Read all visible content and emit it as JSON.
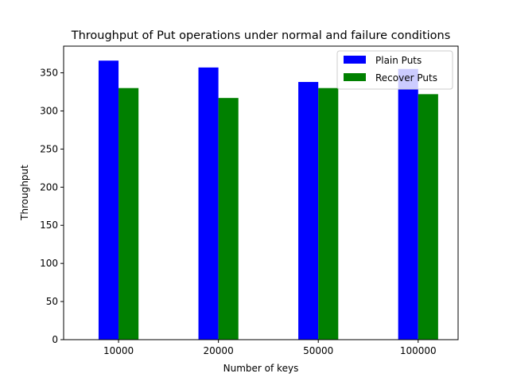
{
  "chart_data": {
    "type": "bar",
    "title": "Throughput of Put operations under normal and failure conditions",
    "xlabel": "Number of keys",
    "ylabel": "Throughput",
    "categories": [
      "10000",
      "20000",
      "50000",
      "100000"
    ],
    "series": [
      {
        "name": "Plain Puts",
        "color": "#0000ff",
        "values": [
          366,
          357,
          338,
          355
        ]
      },
      {
        "name": "Recover Puts",
        "color": "#008000",
        "values": [
          330,
          317,
          330,
          322
        ]
      }
    ],
    "ylim": [
      0,
      385
    ],
    "yticks": [
      0,
      50,
      100,
      150,
      200,
      250,
      300,
      350
    ],
    "grid": false,
    "legend_position": "top-right"
  }
}
